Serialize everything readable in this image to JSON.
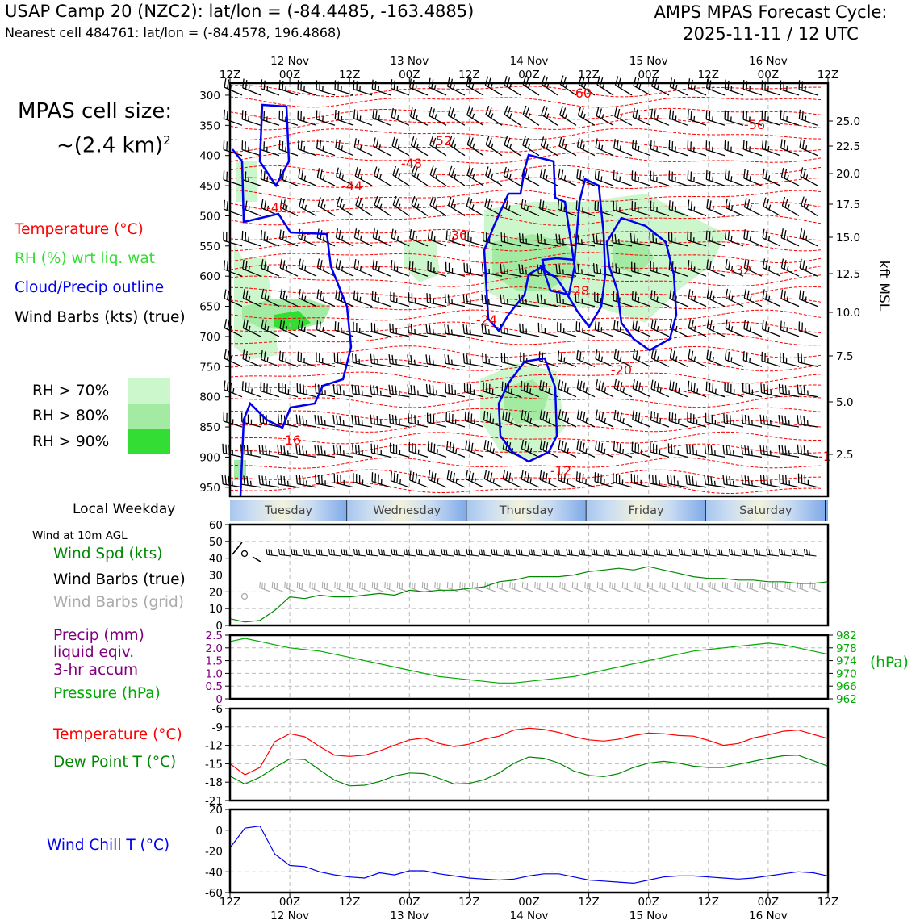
{
  "header": {
    "title_left": "USAP Camp 20 (NZC2): lat/lon = (-84.4485, -163.4885)",
    "subtitle_left": "Nearest cell 484761: lat/lon = (-84.4578, 196.4868)",
    "title_right_line1": "AMPS MPAS Forecast Cycle:",
    "title_right_line2": "2025-11-11 / 12 UTC"
  },
  "cell_size": {
    "line1": "MPAS cell size:",
    "line2": "~(2.4 km)",
    "sup": "2"
  },
  "legend": {
    "temperature": "Temperature (°C)",
    "rh": "RH (%) wrt liq. wat",
    "cloud": "Cloud/Precip outline",
    "wind": "Wind Barbs (kts) (true)",
    "colors": {
      "temperature": "#ff0000",
      "rh": "#33dd33",
      "cloud": "#0000ee",
      "wind": "#000000"
    }
  },
  "rh_legend": [
    {
      "label": "RH > 70%",
      "color": "#ccf7cc"
    },
    {
      "label": "RH > 80%",
      "color": "#a3eba3"
    },
    {
      "label": "RH > 90%",
      "color": "#33dd33"
    }
  ],
  "time_axis": {
    "top_ticks": [
      "12Z",
      "00Z",
      "12Z",
      "00Z",
      "12Z",
      "00Z",
      "12Z",
      "00Z",
      "12Z",
      "00Z",
      "12Z"
    ],
    "date_labels": [
      "12 Nov",
      "13 Nov",
      "14 Nov",
      "15 Nov",
      "16 Nov"
    ]
  },
  "weekday": {
    "label": "Local Weekday",
    "days": [
      "Tuesday",
      "Wednesday",
      "Thursday",
      "Friday",
      "Saturday"
    ]
  },
  "pressure_axis": {
    "ticks": [
      "300",
      "350",
      "400",
      "450",
      "500",
      "550",
      "600",
      "650",
      "700",
      "750",
      "800",
      "850",
      "900",
      "950"
    ],
    "height_ticks": [
      "25.0",
      "22.5",
      "20.0",
      "17.5",
      "15.0",
      "12.5",
      "10.0",
      "7.5",
      "5.0",
      "2.5"
    ],
    "height_label": "kft MSL"
  },
  "temperature_contour_labels": [
    "-60",
    "-56",
    "-52",
    "-48",
    "-44",
    "-40",
    "-36",
    "-32",
    "-28",
    "-24",
    "-20",
    "-16",
    "-12",
    "-1"
  ],
  "panels": {
    "wind": {
      "title": "Wind at 10m AGL",
      "labels": [
        "Wind Spd (kts)",
        "Wind Barbs (true)",
        "Wind Barbs (grid)"
      ],
      "colors": [
        "#008800",
        "#000000",
        "#aaaaaa"
      ],
      "yticks": [
        "60",
        "50",
        "40",
        "30",
        "20",
        "10",
        "0"
      ]
    },
    "precip": {
      "labels": [
        "Precip (mm)",
        "liquid eqiv.",
        "3-hr accum",
        "Pressure (hPa)"
      ],
      "colors": [
        "#800080",
        "#800080",
        "#800080",
        "#00aa00"
      ],
      "yticks_left": [
        "2.5",
        "2.0",
        "1.5",
        "1.0",
        "0.5",
        "0"
      ],
      "yticks_right": [
        "982",
        "978",
        "974",
        "970",
        "966",
        "962"
      ],
      "right_unit": "(hPa)"
    },
    "temp": {
      "labels": [
        "Temperature (°C)",
        "Dew Point T (°C)"
      ],
      "colors": [
        "#ff0000",
        "#008800"
      ],
      "yticks": [
        "-6",
        "-9",
        "-12",
        "-15",
        "-18",
        "-21"
      ]
    },
    "chill": {
      "labels": [
        "Wind Chill T (°C)"
      ],
      "colors": [
        "#0000ee"
      ],
      "yticks": [
        "20",
        "0",
        "-20",
        "-40",
        "-60"
      ]
    }
  },
  "chart_data": [
    {
      "type": "line",
      "title": "Wind at 10m AGL",
      "ylabel": "Wind Spd (kts)",
      "ylim": [
        0,
        60
      ],
      "x_hours": [
        0,
        3,
        6,
        9,
        12,
        15,
        18,
        21,
        24,
        27,
        30,
        33,
        36,
        39,
        42,
        45,
        48,
        51,
        54,
        57,
        60,
        63,
        66,
        69,
        72,
        75,
        78,
        81,
        84,
        87,
        90,
        93,
        96,
        99,
        102,
        105,
        108,
        111,
        114,
        117,
        120
      ],
      "series": [
        {
          "name": "Wind Spd (kts)",
          "values": [
            4,
            2,
            3,
            9,
            17,
            16,
            18,
            17,
            17,
            18,
            19,
            18,
            21,
            20,
            21,
            21,
            22,
            23,
            26,
            27,
            29,
            29,
            29,
            30,
            32,
            33,
            34,
            33,
            35,
            33,
            31,
            29,
            28,
            28,
            27,
            27,
            26,
            26,
            25,
            25,
            26
          ]
        }
      ]
    },
    {
      "type": "line",
      "ylabel": "Pressure (hPa)",
      "ylim": [
        962,
        982
      ],
      "x_hours": [
        0,
        3,
        6,
        9,
        12,
        15,
        18,
        21,
        24,
        27,
        30,
        33,
        36,
        39,
        42,
        45,
        48,
        51,
        54,
        57,
        60,
        63,
        66,
        69,
        72,
        75,
        78,
        81,
        84,
        87,
        90,
        93,
        96,
        99,
        102,
        105,
        108,
        111,
        114,
        117,
        120
      ],
      "series": [
        {
          "name": "Pressure (hPa)",
          "values": [
            980,
            981,
            980,
            979,
            978,
            977.5,
            977,
            976,
            975,
            974,
            973,
            972,
            971,
            970,
            969,
            968.5,
            968,
            967.5,
            967,
            967,
            967.5,
            968,
            968.5,
            969,
            970,
            971,
            972,
            973,
            974,
            975,
            976,
            977,
            977.5,
            978,
            978.5,
            979,
            979.5,
            979,
            978,
            977,
            976
          ]
        }
      ]
    },
    {
      "type": "line",
      "ylim": [
        -21,
        -6
      ],
      "x_hours": [
        0,
        3,
        6,
        9,
        12,
        15,
        18,
        21,
        24,
        27,
        30,
        33,
        36,
        39,
        42,
        45,
        48,
        51,
        54,
        57,
        60,
        63,
        66,
        69,
        72,
        75,
        78,
        81,
        84,
        87,
        90,
        93,
        96,
        99,
        102,
        105,
        108,
        111,
        114,
        117,
        120
      ],
      "series": [
        {
          "name": "Temperature (°C)",
          "values": [
            -15,
            -16.8,
            -15.6,
            -11.4,
            -10.1,
            -10.6,
            -12.2,
            -13.6,
            -13.8,
            -13.6,
            -12.9,
            -12.0,
            -11.1,
            -10.8,
            -11.7,
            -12.2,
            -11.8,
            -11.0,
            -10.5,
            -9.5,
            -9.2,
            -9.4,
            -9.9,
            -10.6,
            -11.1,
            -11.3,
            -11.0,
            -10.4,
            -10.0,
            -10.1,
            -10.4,
            -10.5,
            -11.2,
            -12.0,
            -11.7,
            -10.8,
            -10.3,
            -9.7,
            -9.5,
            -10.2,
            -10.9
          ]
        },
        {
          "name": "Dew Point T (°C)",
          "values": [
            -17,
            -18.3,
            -17.2,
            -15.6,
            -14.2,
            -14.3,
            -16.0,
            -17.7,
            -18.6,
            -18.5,
            -17.9,
            -17.0,
            -16.5,
            -16.6,
            -17.4,
            -18.3,
            -18.2,
            -17.6,
            -16.5,
            -14.9,
            -13.9,
            -14.1,
            -14.9,
            -16.2,
            -16.9,
            -17.1,
            -16.6,
            -15.6,
            -14.9,
            -14.6,
            -14.9,
            -15.4,
            -15.6,
            -15.6,
            -15.1,
            -14.6,
            -14.1,
            -13.7,
            -13.6,
            -14.5,
            -15.4
          ]
        }
      ]
    },
    {
      "type": "line",
      "ylim": [
        -60,
        20
      ],
      "x_hours": [
        0,
        3,
        6,
        9,
        12,
        15,
        18,
        21,
        24,
        27,
        30,
        33,
        36,
        39,
        42,
        45,
        48,
        51,
        54,
        57,
        60,
        63,
        66,
        69,
        72,
        75,
        78,
        81,
        84,
        87,
        90,
        93,
        96,
        99,
        102,
        105,
        108,
        111,
        114,
        117,
        120
      ],
      "series": [
        {
          "name": "Wind Chill T (°C)",
          "values": [
            -17,
            2,
            4,
            -23,
            -34,
            -35,
            -40,
            -43,
            -45,
            -46,
            -41,
            -43,
            -39,
            -39,
            -42,
            -44,
            -46,
            -47,
            -48,
            -47,
            -44,
            -42,
            -42,
            -45,
            -48,
            -49,
            -50,
            -51,
            -48,
            -45,
            -44,
            -44,
            -45,
            -46,
            -47,
            -46,
            -44,
            -42,
            -40,
            -41,
            -44
          ]
        }
      ]
    }
  ]
}
